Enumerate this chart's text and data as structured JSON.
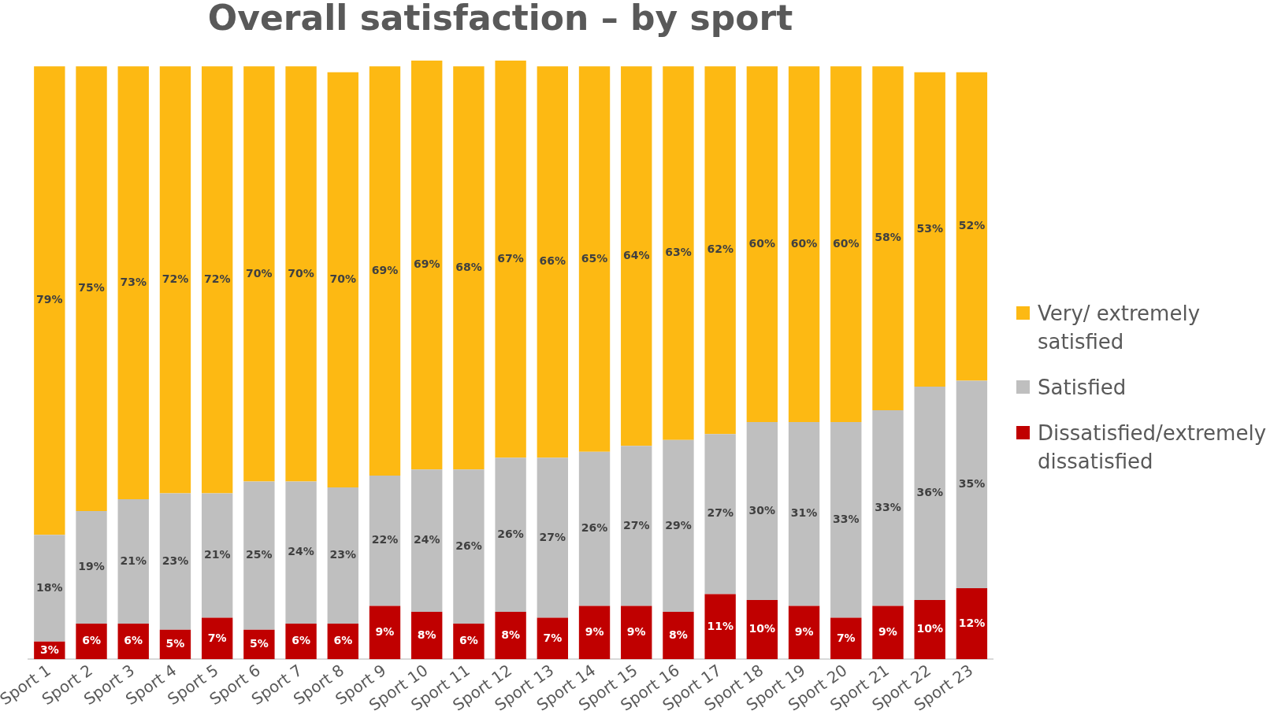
{
  "chart_data": {
    "type": "bar",
    "title": "Overall satisfaction – by sport",
    "stacked": true,
    "legend": "right",
    "grid": false,
    "tick_labels": "x",
    "categories": [
      "Sport 1",
      "Sport 2",
      "Sport 3",
      "Sport 4",
      "Sport 5",
      "Sport 6",
      "Sport 7",
      "Sport 8",
      "Sport 9",
      "Sport 10",
      "Sport 11",
      "Sport 12",
      "Sport 13",
      "Sport 14",
      "Sport 15",
      "Sport 16",
      "Sport 17",
      "Sport 18",
      "Sport 19",
      "Sport 20",
      "Sport 21",
      "Sport 22",
      "Sport 23"
    ],
    "series": [
      {
        "name": "Dissatisfied/extremely dissatisfied",
        "color": "#c00000",
        "values": [
          3,
          6,
          6,
          5,
          7,
          5,
          6,
          6,
          9,
          8,
          6,
          8,
          7,
          9,
          9,
          8,
          11,
          10,
          9,
          7,
          9,
          10,
          12
        ],
        "value_labels": [
          "3%",
          "6%",
          "6%",
          "5%",
          "7%",
          "5%",
          "6%",
          "6%",
          "9%",
          "8%",
          "6%",
          "8%",
          "7%",
          "9%",
          "9%",
          "8%",
          "11%",
          "10%",
          "9%",
          "7%",
          "9%",
          "10%",
          "12%"
        ]
      },
      {
        "name": "Satisfied",
        "color": "#bfbfbf",
        "values": [
          18,
          19,
          21,
          23,
          21,
          25,
          24,
          23,
          22,
          24,
          26,
          26,
          27,
          26,
          27,
          29,
          27,
          30,
          31,
          33,
          33,
          36,
          35
        ],
        "value_labels": [
          "18%",
          "19%",
          "21%",
          "23%",
          "21%",
          "25%",
          "24%",
          "23%",
          "22%",
          "24%",
          "26%",
          "26%",
          "27%",
          "26%",
          "27%",
          "29%",
          "27%",
          "30%",
          "31%",
          "33%",
          "33%",
          "36%",
          "35%"
        ]
      },
      {
        "name": "Very/ extremely satisfied",
        "color": "#fdb913",
        "values": [
          79,
          75,
          73,
          72,
          72,
          70,
          70,
          70,
          69,
          69,
          68,
          67,
          66,
          65,
          64,
          63,
          62,
          60,
          60,
          60,
          58,
          53,
          52
        ],
        "value_labels": [
          "79%",
          "75%",
          "73%",
          "72%",
          "72%",
          "70%",
          "70%",
          "70%",
          "69%",
          "69%",
          "68%",
          "67%",
          "66%",
          "65%",
          "64%",
          "63%",
          "62%",
          "60%",
          "60%",
          "60%",
          "58%",
          "53%",
          "52%"
        ]
      }
    ]
  }
}
